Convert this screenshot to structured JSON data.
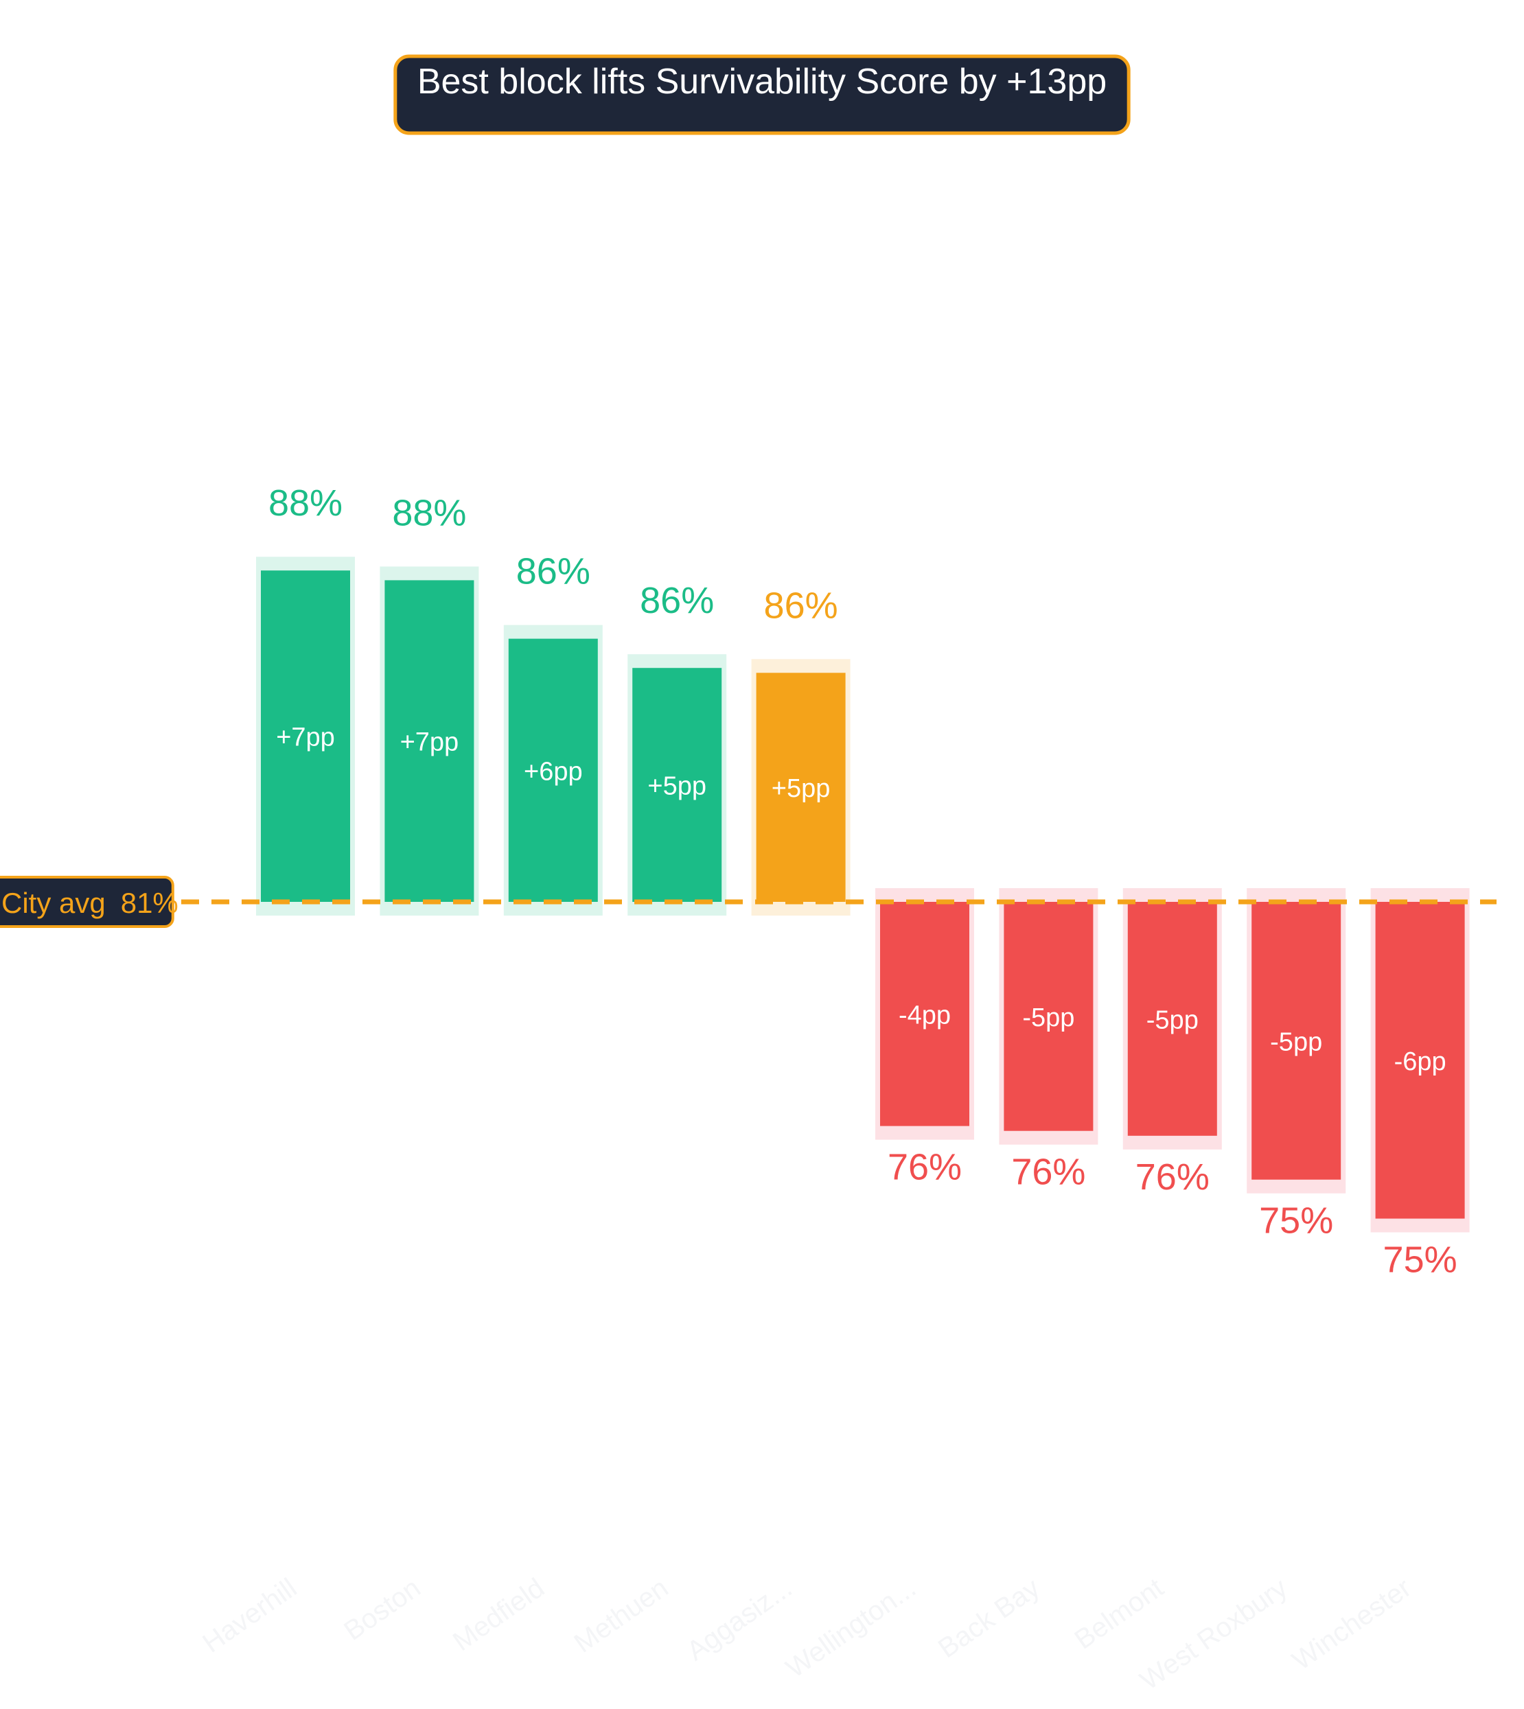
{
  "chart_data": {
    "type": "bar",
    "title": "Best block lifts Survivability Score by +13pp",
    "reference": {
      "label": "City avg",
      "value_label": "81%",
      "value": 81
    },
    "categories": [
      "Haverhill",
      "Boston",
      "Medfield",
      "Methuen",
      "Aggasiz...",
      "Wellington...",
      "Back Bay",
      "Belmont",
      "West Roxbury",
      "Winchester"
    ],
    "values": [
      87.8,
      87.6,
      86.4,
      85.8,
      85.7,
      76.4,
      76.3,
      76.2,
      75.3,
      74.5
    ],
    "value_labels": [
      "88%",
      "88%",
      "86%",
      "86%",
      "86%",
      "76%",
      "76%",
      "76%",
      "75%",
      "75%"
    ],
    "delta_labels": [
      "+7pp",
      "+7pp",
      "+6pp",
      "+5pp",
      "+5pp",
      "-4pp",
      "-5pp",
      "-5pp",
      "-5pp",
      "-6pp"
    ],
    "highlight_index": 4,
    "colors": {
      "positive": "#1bbc87",
      "positive_halo": "#dcf5ec",
      "negative": "#f04e4e",
      "negative_halo": "#fde1e5",
      "highlight": "#f4a31a",
      "highlight_halo": "#fdf0da",
      "reference": "#f4a31a",
      "badge_bg": "#1e2638",
      "badge_border": "#f4a31a",
      "badge_text": "#ffffff",
      "tick_text": "#f4f5f7"
    },
    "grid": false,
    "legend": "none"
  }
}
